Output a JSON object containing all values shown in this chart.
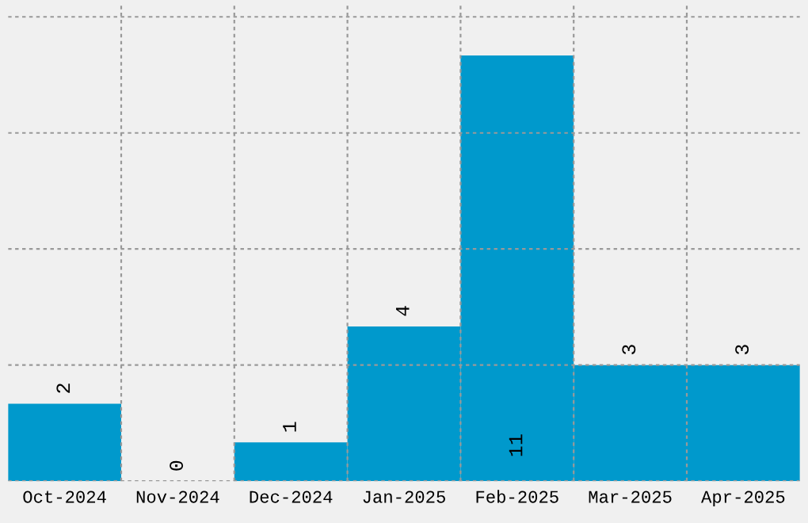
{
  "chart_data": {
    "type": "bar",
    "categories": [
      "Oct-2024",
      "Nov-2024",
      "Dec-2024",
      "Jan-2025",
      "Feb-2025",
      "Mar-2025",
      "Apr-2025"
    ],
    "values": [
      2,
      0,
      1,
      4,
      11,
      3,
      3
    ],
    "color": "#0099cc",
    "data_labels": true,
    "ylim": [
      0,
      12.3
    ],
    "yticks": [
      {
        "value": 0,
        "label": null
      },
      {
        "value": 3,
        "label": null
      },
      {
        "value": 6,
        "label": null
      },
      {
        "value": 9,
        "label": null
      },
      {
        "value": 12,
        "label": null
      }
    ],
    "tick_labels": "x",
    "grid": true
  }
}
